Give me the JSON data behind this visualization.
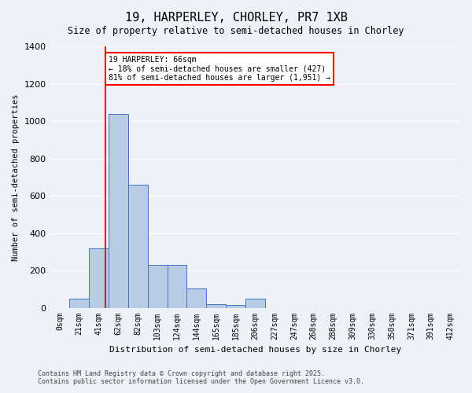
{
  "title_line1": "19, HARPERLEY, CHORLEY, PR7 1XB",
  "title_line2": "Size of property relative to semi-detached houses in Chorley",
  "xlabel": "Distribution of semi-detached houses by size in Chorley",
  "ylabel": "Number of semi-detached properties",
  "annotation_title": "19 HARPERLEY: 66sqm",
  "annotation_line2": "← 18% of semi-detached houses are smaller (427)",
  "annotation_line3": "81% of semi-detached houses are larger (1,951) →",
  "footer_line1": "Contains HM Land Registry data © Crown copyright and database right 2025.",
  "footer_line2": "Contains public sector information licensed under the Open Government Licence v3.0.",
  "bar_labels": [
    "0sqm",
    "21sqm",
    "41sqm",
    "62sqm",
    "82sqm",
    "103sqm",
    "124sqm",
    "144sqm",
    "165sqm",
    "185sqm",
    "206sqm",
    "227sqm",
    "247sqm",
    "268sqm",
    "288sqm",
    "309sqm",
    "330sqm",
    "350sqm",
    "371sqm",
    "391sqm",
    "412sqm"
  ],
  "bar_values": [
    0,
    50,
    320,
    1040,
    660,
    230,
    230,
    105,
    20,
    15,
    50,
    0,
    0,
    0,
    0,
    0,
    0,
    0,
    0,
    0,
    0
  ],
  "bar_color": "#b8cce4",
  "bar_edgecolor": "#4472c4",
  "vline_x": 2.35,
  "vline_color": "red",
  "ylim": [
    0,
    1400
  ],
  "yticks": [
    0,
    200,
    400,
    600,
    800,
    1000,
    1200,
    1400
  ],
  "background_color": "#eef2f8",
  "grid_color": "white",
  "annotation_box_color": "white",
  "annotation_box_edgecolor": "red"
}
